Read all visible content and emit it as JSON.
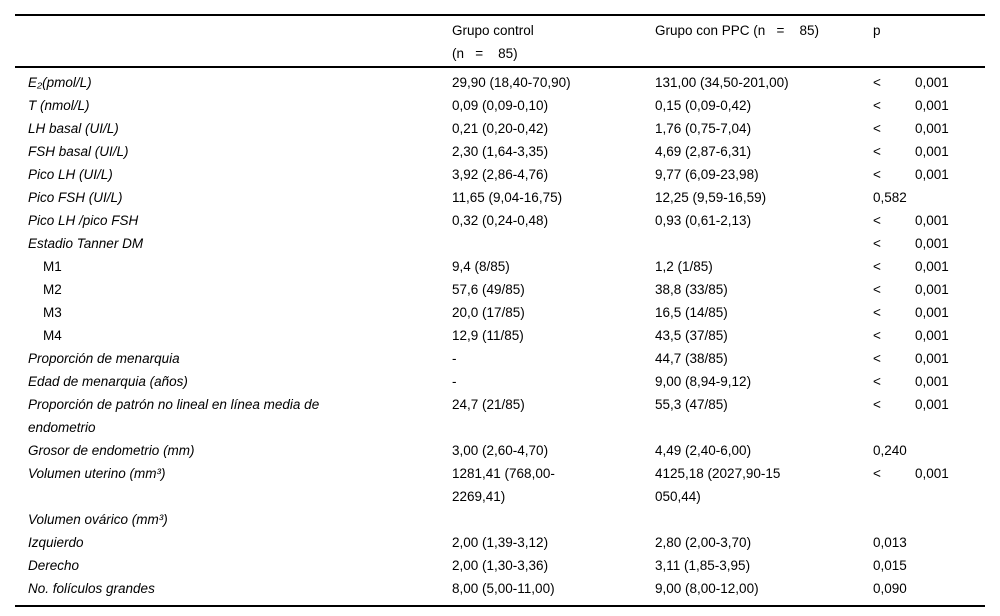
{
  "table": {
    "header": {
      "label": "",
      "control": "Grupo control\n(n   =    85)",
      "ppc": "Grupo con PPC (n   =    85)",
      "p": "p"
    },
    "rows": [
      {
        "label": "E₂(pmol/L)",
        "control": "29,90 (18,40-70,90)",
        "ppc": "131,00 (34,50-201,00)",
        "p_op": "<",
        "p": "0,001",
        "sub_item": false
      },
      {
        "label": "T (nmol/L)",
        "control": "0,09 (0,09-0,10)",
        "ppc": "0,15 (0,09-0,42)",
        "p_op": "<",
        "p": "0,001",
        "sub_item": false
      },
      {
        "label": "LH basal (UI/L)",
        "control": "0,21 (0,20-0,42)",
        "ppc": "1,76 (0,75-7,04)",
        "p_op": "<",
        "p": "0,001",
        "sub_item": false
      },
      {
        "label": "FSH basal (UI/L)",
        "control": "2,30 (1,64-3,35)",
        "ppc": "4,69 (2,87-6,31)",
        "p_op": "<",
        "p": "0,001",
        "sub_item": false
      },
      {
        "label": "Pico LH (UI/L)",
        "control": "3,92 (2,86-4,76)",
        "ppc": "9,77 (6,09-23,98)",
        "p_op": "<",
        "p": "0,001",
        "sub_item": false
      },
      {
        "label": "Pico FSH (UI/L)",
        "control": "11,65 (9,04-16,75)",
        "ppc": "12,25 (9,59-16,59)",
        "p_op": "",
        "p": "0,582",
        "sub_item": false
      },
      {
        "label": "Pico LH /pico FSH",
        "control": "0,32 (0,24-0,48)",
        "ppc": "0,93 (0,61-2,13)",
        "p_op": "<",
        "p": "0,001",
        "sub_item": false
      },
      {
        "label": "Estadio Tanner DM",
        "control": "",
        "ppc": "",
        "p_op": "<",
        "p": "0,001",
        "sub_item": false
      },
      {
        "label": "M1",
        "control": "9,4 (8/85)",
        "ppc": "1,2 (1/85)",
        "p_op": "<",
        "p": "0,001",
        "sub_item": true
      },
      {
        "label": "M2",
        "control": "57,6 (49/85)",
        "ppc": "38,8 (33/85)",
        "p_op": "<",
        "p": "0,001",
        "sub_item": true
      },
      {
        "label": "M3",
        "control": "20,0 (17/85)",
        "ppc": "16,5 (14/85)",
        "p_op": "<",
        "p": "0,001",
        "sub_item": true
      },
      {
        "label": "M4",
        "control": "12,9 (11/85)",
        "ppc": "43,5 (37/85)",
        "p_op": "<",
        "p": "0,001",
        "sub_item": true
      },
      {
        "label": "Proporción de menarquia",
        "control": "-",
        "ppc": "44,7 (38/85)",
        "p_op": "<",
        "p": "0,001",
        "sub_item": false
      },
      {
        "label": "Edad de menarquia (años)",
        "control": "-",
        "ppc": "9,00 (8,94-9,12)",
        "p_op": "<",
        "p": "0,001",
        "sub_item": false
      },
      {
        "label": "Proporción de patrón no lineal en línea media de\nendometrio",
        "control": "24,7 (21/85)",
        "ppc": "55,3 (47/85)",
        "p_op": "<",
        "p": "0,001",
        "sub_item": false
      },
      {
        "label": "Grosor de endometrio (mm)",
        "control": "3,00 (2,60-4,70)",
        "ppc": "4,49 (2,40-6,00)",
        "p_op": "",
        "p": "0,240",
        "sub_item": false
      },
      {
        "label": "Volumen uterino (mm³)",
        "control": "1281,41 (768,00-\n2269,41)",
        "ppc": "4125,18 (2027,90-15\n050,44)",
        "p_op": "<",
        "p": "0,001",
        "sub_item": false
      },
      {
        "label": "Volumen ovárico (mm³)",
        "control": "",
        "ppc": "",
        "p_op": "",
        "p": "",
        "sub_item": false
      },
      {
        "label": "Izquierdo",
        "control": "2,00 (1,39-3,12)",
        "ppc": "2,80 (2,00-3,70)",
        "p_op": "",
        "p": "0,013",
        "sub_item": false
      },
      {
        "label": "Derecho",
        "control": "2,00 (1,30-3,36)",
        "ppc": "3,11 (1,85-3,95)",
        "p_op": "",
        "p": "0,015",
        "sub_item": false
      },
      {
        "label": "No. folículos grandes",
        "control": "8,00 (5,00-11,00)",
        "ppc": "9,00 (8,00-12,00)",
        "p_op": "",
        "p": "0,090",
        "sub_item": false
      }
    ]
  }
}
